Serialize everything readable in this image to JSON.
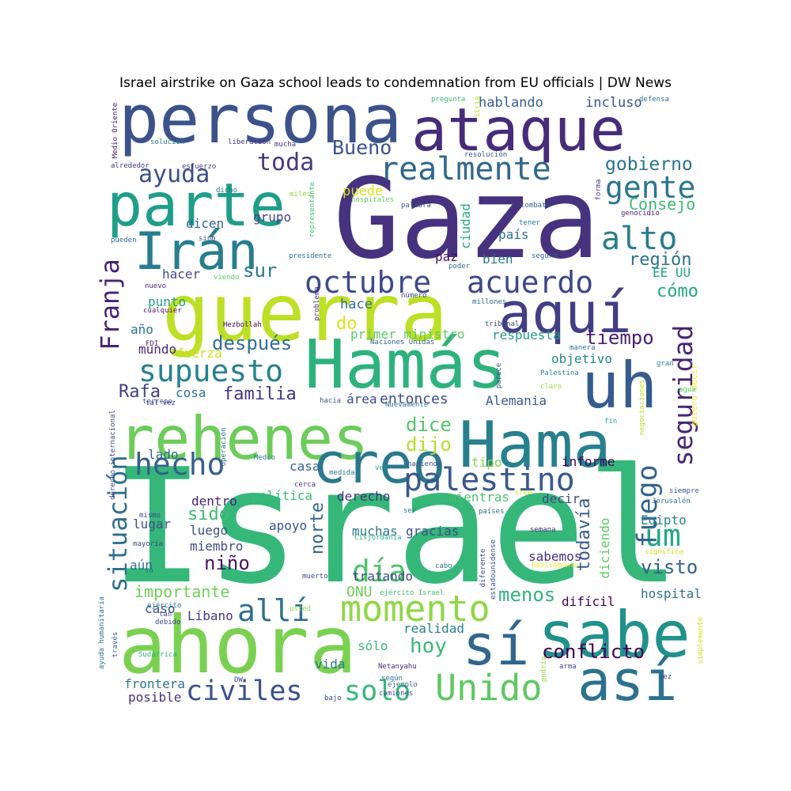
{
  "title": "Israel airstrike on Gaza school leads to condemnation from EU officials | DW News",
  "words": [
    {
      "text": "Israel",
      "color": "#35b779"
    },
    {
      "text": "Gaza",
      "color": "#46327e"
    },
    {
      "text": "ahora",
      "color": "#7ad151"
    },
    {
      "text": "guerra",
      "color": "#bddf26"
    },
    {
      "text": "Hamás",
      "color": "#2db27d"
    },
    {
      "text": "persona",
      "color": "#3b528b"
    },
    {
      "text": "ataque",
      "color": "#472c7a"
    },
    {
      "text": "rehenes",
      "color": "#6ccd5a"
    },
    {
      "text": "Hama",
      "color": "#27808e"
    },
    {
      "text": "parte",
      "color": "#1f9e89"
    },
    {
      "text": "uh",
      "color": "#365c8d"
    },
    {
      "text": "sabe",
      "color": "#21918c"
    },
    {
      "text": "sí",
      "color": "#31668e"
    },
    {
      "text": "aquí",
      "color": "#433e85"
    },
    {
      "text": "así",
      "color": "#2c728e"
    },
    {
      "text": "Irán",
      "color": "#287d8e"
    },
    {
      "text": "creo",
      "color": "#2a788e"
    },
    {
      "text": "momento",
      "color": "#8fd744"
    },
    {
      "text": "Unido",
      "color": "#5ec962"
    },
    {
      "text": "palestino",
      "color": "#38598c"
    },
    {
      "text": "realmente",
      "color": "#31688e"
    },
    {
      "text": "octubre",
      "color": "#3e4a89"
    },
    {
      "text": "acuerdo",
      "color": "#3f4788"
    },
    {
      "text": "alto",
      "color": "#287c8e"
    },
    {
      "text": "gente",
      "color": "#2a768e"
    },
    {
      "text": "supuesto",
      "color": "#26828e"
    },
    {
      "text": "hecho",
      "color": "#355f8d"
    },
    {
      "text": "allí",
      "color": "#2e6f8e"
    },
    {
      "text": "día",
      "color": "#4ec36b"
    },
    {
      "text": "um",
      "color": "#22a884"
    },
    {
      "text": "fuego",
      "color": "#33638d"
    },
    {
      "text": "seguridad",
      "color": "#482475"
    },
    {
      "text": "situación",
      "color": "#2e6e8e"
    },
    {
      "text": "Franja",
      "color": "#482173"
    },
    {
      "text": "civiles",
      "color": "#3b518b"
    },
    {
      "text": "solo",
      "color": "#37b878"
    },
    {
      "text": "ayuda",
      "color": "#3c508b"
    },
    {
      "text": "toda",
      "color": "#443a83"
    },
    {
      "text": "Bueno",
      "color": "#3b528b"
    },
    {
      "text": "gobierno",
      "color": "#2c738e"
    },
    {
      "text": "Consejo",
      "color": "#3cbb75"
    },
    {
      "text": "región",
      "color": "#2d708e"
    },
    {
      "text": "cómo",
      "color": "#22a785"
    },
    {
      "text": "tiempo",
      "color": "#481f70"
    },
    {
      "text": "después",
      "color": "#2d718e"
    },
    {
      "text": "familia",
      "color": "#453781"
    },
    {
      "text": "Rafa",
      "color": "#433d84"
    },
    {
      "text": "sur",
      "color": "#2a778e"
    },
    {
      "text": "dice",
      "color": "#54c568"
    },
    {
      "text": "dijo",
      "color": "#b5de2b"
    },
    {
      "text": "hoy",
      "color": "#38b977"
    },
    {
      "text": "conflicto",
      "color": "#440154"
    },
    {
      "text": "menos",
      "color": "#2fb47c"
    },
    {
      "text": "norte",
      "color": "#31678e"
    },
    {
      "text": "sido",
      "color": "#3dbc74"
    },
    {
      "text": "niño",
      "color": "#471365"
    },
    {
      "text": "visto",
      "color": "#33628d"
    },
    {
      "text": "todavía",
      "color": "#38588c"
    },
    {
      "text": "puede",
      "color": "#d8e219"
    },
    {
      "text": "hablando",
      "color": "#35608d"
    },
    {
      "text": "incluso",
      "color": "#3a548c"
    },
    {
      "text": "entonces",
      "color": "#3e4c8a"
    },
    {
      "text": "importante",
      "color": "#70cf57"
    },
    {
      "text": "ONU",
      "color": "#6ece58"
    },
    {
      "text": "hace",
      "color": "#2f6c8e"
    },
    {
      "text": "do",
      "color": "#dde318"
    },
    {
      "text": "hacer",
      "color": "#3f4889"
    },
    {
      "text": "punto",
      "color": "#1fa088"
    },
    {
      "text": "año",
      "color": "#2a788e"
    },
    {
      "text": "fuerza",
      "color": "#c8e020"
    },
    {
      "text": "mundo",
      "color": "#482878"
    },
    {
      "text": "cosa",
      "color": "#2c728e"
    },
    {
      "text": "EE UU",
      "color": "#20a386"
    },
    {
      "text": "grupo",
      "color": "#424186"
    },
    {
      "text": "dicen",
      "color": "#32658e"
    },
    {
      "text": "ciudad",
      "color": "#25ac82"
    },
    {
      "text": "país",
      "color": "#2e6e8e"
    },
    {
      "text": "bien",
      "color": "#2c728e"
    },
    {
      "text": "paz",
      "color": "#471164"
    },
    {
      "text": "primer ministro",
      "color": "#5ec962"
    },
    {
      "text": "respuesta",
      "color": "#1f998a"
    },
    {
      "text": "objetivo",
      "color": "#24868e"
    },
    {
      "text": "Alemania",
      "color": "#375b8d"
    },
    {
      "text": "área",
      "color": "#3e4989"
    },
    {
      "text": "informe",
      "color": "#440154"
    },
    {
      "text": "tipo",
      "color": "#84d44b"
    },
    {
      "text": "decir",
      "color": "#3e4c8a"
    },
    {
      "text": "Egipto",
      "color": "#26828e"
    },
    {
      "text": "diciendo",
      "color": "#5ec962"
    },
    {
      "text": "sabemos",
      "color": "#46307e"
    },
    {
      "text": "mientras",
      "color": "#4ac16d"
    },
    {
      "text": "derecho",
      "color": "#46327e"
    },
    {
      "text": "política",
      "color": "#3aba76"
    },
    {
      "text": "casa",
      "color": "#32648e"
    },
    {
      "text": "dentro",
      "color": "#482374"
    },
    {
      "text": "luego",
      "color": "#3a538b"
    },
    {
      "text": "lugar",
      "color": "#3b528b"
    },
    {
      "text": "miembro",
      "color": "#3e4a89"
    },
    {
      "text": "apoyo",
      "color": "#39568c"
    },
    {
      "text": "muchas",
      "color": "#2a788e"
    },
    {
      "text": "gracias",
      "color": "#3c4f8a"
    },
    {
      "text": "tratando",
      "color": "#3f4889"
    },
    {
      "text": "aún",
      "color": "#2d708e"
    },
    {
      "text": "difícil",
      "color": "#440154"
    },
    {
      "text": "hospital",
      "color": "#2d708e"
    },
    {
      "text": "caso",
      "color": "#3c4f8a"
    },
    {
      "text": "Líbano",
      "color": "#453781"
    },
    {
      "text": "realidad",
      "color": "#277f8e"
    },
    {
      "text": "sólo",
      "color": "#39b977"
    },
    {
      "text": "vida",
      "color": "#2a778e"
    },
    {
      "text": "frontera",
      "color": "#2c738e"
    },
    {
      "text": "posible",
      "color": "#46337f"
    },
    {
      "text": "lado",
      "color": "#32658e"
    },
    {
      "text": "Netanyahu",
      "color": "#482878"
    },
    {
      "text": "bajo",
      "color": "#3e4a89"
    },
    {
      "text": "DW",
      "color": "#3e4989"
    },
    {
      "text": "ejército Israel",
      "color": "#3dbc74"
    },
    {
      "text": "Nuevamente",
      "color": "#2a778e"
    },
    {
      "text": "Medio Oriente",
      "color": "#481a6c"
    },
    {
      "text": "Siria",
      "color": "#c2df23"
    },
    {
      "text": "pregunta",
      "color": "#3aba76"
    },
    {
      "text": "defensa",
      "color": "#2c728e"
    },
    {
      "text": "solución",
      "color": "#2a788e"
    },
    {
      "text": "liberación",
      "color": "#46307e"
    },
    {
      "text": "mucha",
      "color": "#472d7b"
    },
    {
      "text": "alrededor",
      "color": "#46337f"
    },
    {
      "text": "esfuerzo",
      "color": "#443983"
    },
    {
      "text": "resolución",
      "color": "#3b528b"
    },
    {
      "text": "dicho",
      "color": "#2a778e"
    },
    {
      "text": "miles",
      "color": "#8fd744"
    },
    {
      "text": "hospitales",
      "color": "#65cb5e"
    },
    {
      "text": "palabra",
      "color": "#3b528b"
    },
    {
      "text": "combate",
      "color": "#34608d"
    },
    {
      "text": "tener",
      "color": "#287d8e"
    },
    {
      "text": "forma",
      "color": "#443a83"
    },
    {
      "text": "genocidio",
      "color": "#481a6c"
    },
    {
      "text": "representante",
      "color": "#45c06f"
    },
    {
      "text": "pueden",
      "color": "#2e6e8e"
    },
    {
      "text": "sino",
      "color": "#3a538b"
    },
    {
      "text": "presidente",
      "color": "#2e6e8e"
    },
    {
      "text": "seguro",
      "color": "#31668e"
    },
    {
      "text": "poder",
      "color": "#2e6f8e"
    },
    {
      "text": "viendo",
      "color": "#5ec962"
    },
    {
      "text": "nuevo",
      "color": "#482878"
    },
    {
      "text": "cualquier",
      "color": "#481b6d"
    },
    {
      "text": "FDI",
      "color": "#482777"
    },
    {
      "text": "Hezbollah",
      "color": "#440154"
    },
    {
      "text": "número",
      "color": "#3e4989"
    },
    {
      "text": "problema",
      "color": "#472a7a"
    },
    {
      "text": "millones",
      "color": "#2f6b8e"
    },
    {
      "text": "tribunal",
      "color": "#414487"
    },
    {
      "text": "Naciones Unidas",
      "color": "#33628d"
    },
    {
      "text": "manera",
      "color": "#2d708e"
    },
    {
      "text": "quiero decir",
      "color": "#fde725"
    },
    {
      "text": "gran",
      "color": "#24878e"
    },
    {
      "text": "Palestina",
      "color": "#25838e"
    },
    {
      "text": "parece",
      "color": "#3a548c"
    },
    {
      "text": "claro",
      "color": "#9dd93b"
    },
    {
      "text": "agua",
      "color": "#54c568"
    },
    {
      "text": "derecho internacional",
      "color": "#3e4989"
    },
    {
      "text": "terreno",
      "color": "#3b528b"
    },
    {
      "text": "tal vez",
      "color": "#433e85"
    },
    {
      "text": "hacia",
      "color": "#3b528b"
    },
    {
      "text": "negociaciones",
      "color": "#b5de2b"
    },
    {
      "text": "operación",
      "color": "#2e6e8e"
    },
    {
      "text": "fin",
      "color": "#26ad81"
    },
    {
      "text": "haciendo",
      "color": "#3b528b"
    },
    {
      "text": "medida",
      "color": "#2a788e"
    },
    {
      "text": "ver",
      "color": "#20a386"
    },
    {
      "text": "Medio",
      "color": "#287d8e"
    },
    {
      "text": "cerca",
      "color": "#472d7b"
    },
    {
      "text": "cree",
      "color": "#d8e219"
    },
    {
      "text": "siempre",
      "color": "#3b528b"
    },
    {
      "text": "Jerusalén",
      "color": "#2c728e"
    },
    {
      "text": "mismo",
      "color": "#3e4989"
    },
    {
      "text": "mayoría",
      "color": "#3e4989"
    },
    {
      "text": "ser",
      "color": "#287d8e"
    },
    {
      "text": "países",
      "color": "#2d718e"
    },
    {
      "text": "Cisjordania",
      "color": "#2db27d"
    },
    {
      "text": "semana",
      "color": "#482979"
    },
    {
      "text": "significa",
      "color": "#d2e21b"
    },
    {
      "text": "va",
      "color": "#2d708e"
    },
    {
      "text": "estadounidense",
      "color": "#3b528b"
    },
    {
      "text": "diferente",
      "color": "#3e4989"
    },
    {
      "text": "cabo",
      "color": "#2a778e"
    },
    {
      "text": "muerto",
      "color": "#3e4989"
    },
    {
      "text": "básicamente",
      "color": "#fde725"
    },
    {
      "text": "ejército",
      "color": "#2c728e"
    },
    {
      "text": "tan",
      "color": "#3e4989"
    },
    {
      "text": "debido",
      "color": "#3e4989"
    },
    {
      "text": "usted",
      "color": "#8fd744"
    },
    {
      "text": "Sudáfrica",
      "color": "#2db27d"
    },
    {
      "text": "través",
      "color": "#365c8d"
    },
    {
      "text": "ayuda humanitaria",
      "color": "#2e6e8e"
    },
    {
      "text": "según",
      "color": "#2d718e"
    },
    {
      "text": "ejemplo",
      "color": "#2e6e8e"
    },
    {
      "text": "camiones",
      "color": "#3b528b"
    },
    {
      "text": "podría",
      "color": "#95d840"
    },
    {
      "text": "arma",
      "color": "#3e4989"
    },
    {
      "text": "simplemente",
      "color": "#d2e21b"
    },
    {
      "text": "vez",
      "color": "#3e4989"
    }
  ]
}
